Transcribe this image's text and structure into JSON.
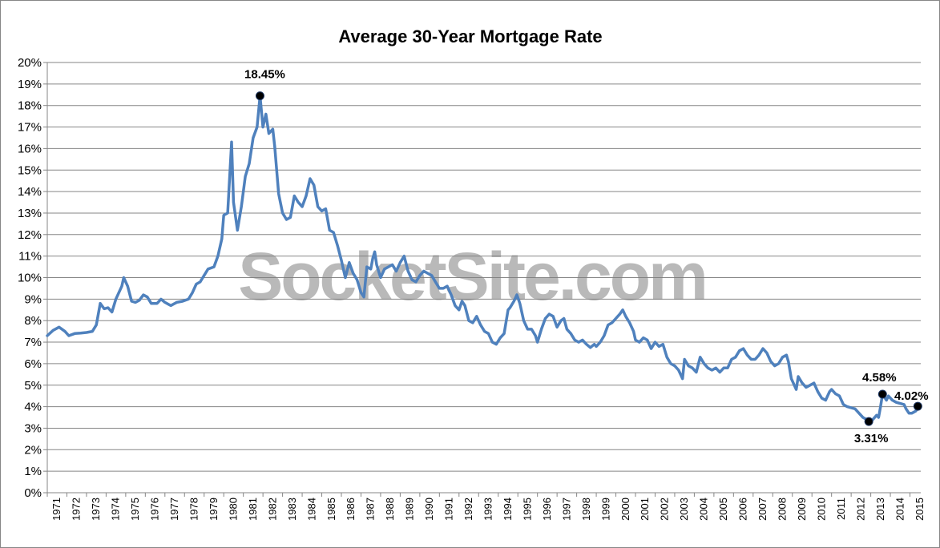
{
  "chart_data": {
    "type": "line",
    "title": "Average 30-Year Mortgage Rate",
    "watermark": "SocketSite.com",
    "xlabel": "",
    "ylabel": "",
    "ylim": [
      0,
      20
    ],
    "y_tick_labels": [
      "0%",
      "1%",
      "2%",
      "3%",
      "4%",
      "5%",
      "6%",
      "7%",
      "8%",
      "9%",
      "10%",
      "11%",
      "12%",
      "13%",
      "14%",
      "15%",
      "16%",
      "17%",
      "18%",
      "19%",
      "20%"
    ],
    "x_tick_labels": [
      "1971",
      "1972",
      "1973",
      "1974",
      "1975",
      "1976",
      "1977",
      "1978",
      "1979",
      "1980",
      "1981",
      "1982",
      "1983",
      "1984",
      "1985",
      "1986",
      "1987",
      "1988",
      "1989",
      "1990",
      "1991",
      "1992",
      "1993",
      "1994",
      "1995",
      "1996",
      "1997",
      "1998",
      "1999",
      "2000",
      "2001",
      "2002",
      "2003",
      "2004",
      "2005",
      "2006",
      "2007",
      "2008",
      "2009",
      "2010",
      "2011",
      "2012",
      "2013",
      "2014",
      "2015"
    ],
    "grid": true,
    "legend": "none",
    "line_color": "#4f81bd",
    "series": [
      {
        "values": [
          [
            1971.0,
            7.3
          ],
          [
            1971.3,
            7.55
          ],
          [
            1971.6,
            7.7
          ],
          [
            1971.9,
            7.5
          ],
          [
            1972.1,
            7.3
          ],
          [
            1972.4,
            7.4
          ],
          [
            1972.7,
            7.42
          ],
          [
            1973.0,
            7.45
          ],
          [
            1973.3,
            7.5
          ],
          [
            1973.5,
            7.8
          ],
          [
            1973.7,
            8.8
          ],
          [
            1973.9,
            8.55
          ],
          [
            1974.1,
            8.6
          ],
          [
            1974.3,
            8.4
          ],
          [
            1974.5,
            9.0
          ],
          [
            1974.8,
            9.6
          ],
          [
            1974.9,
            10.0
          ],
          [
            1975.1,
            9.6
          ],
          [
            1975.3,
            8.9
          ],
          [
            1975.5,
            8.85
          ],
          [
            1975.7,
            8.95
          ],
          [
            1975.9,
            9.2
          ],
          [
            1976.1,
            9.1
          ],
          [
            1976.3,
            8.8
          ],
          [
            1976.6,
            8.8
          ],
          [
            1976.8,
            9.0
          ],
          [
            1977.0,
            8.85
          ],
          [
            1977.3,
            8.7
          ],
          [
            1977.6,
            8.85
          ],
          [
            1977.9,
            8.9
          ],
          [
            1978.2,
            9.0
          ],
          [
            1978.4,
            9.3
          ],
          [
            1978.6,
            9.7
          ],
          [
            1978.8,
            9.8
          ],
          [
            1979.0,
            10.1
          ],
          [
            1979.2,
            10.4
          ],
          [
            1979.5,
            10.5
          ],
          [
            1979.7,
            11.0
          ],
          [
            1979.9,
            11.8
          ],
          [
            1980.0,
            12.9
          ],
          [
            1980.2,
            13.0
          ],
          [
            1980.4,
            16.3
          ],
          [
            1980.5,
            13.5
          ],
          [
            1980.7,
            12.2
          ],
          [
            1980.9,
            13.3
          ],
          [
            1981.1,
            14.7
          ],
          [
            1981.3,
            15.3
          ],
          [
            1981.5,
            16.5
          ],
          [
            1981.7,
            17.0
          ],
          [
            1981.85,
            18.45
          ],
          [
            1982.0,
            17.0
          ],
          [
            1982.15,
            17.6
          ],
          [
            1982.3,
            16.7
          ],
          [
            1982.5,
            16.9
          ],
          [
            1982.6,
            16.1
          ],
          [
            1982.8,
            13.9
          ],
          [
            1983.0,
            13.0
          ],
          [
            1983.2,
            12.7
          ],
          [
            1983.4,
            12.8
          ],
          [
            1983.6,
            13.8
          ],
          [
            1983.8,
            13.5
          ],
          [
            1984.0,
            13.3
          ],
          [
            1984.2,
            13.8
          ],
          [
            1984.4,
            14.6
          ],
          [
            1984.6,
            14.3
          ],
          [
            1984.8,
            13.3
          ],
          [
            1985.0,
            13.1
          ],
          [
            1985.2,
            13.2
          ],
          [
            1985.4,
            12.2
          ],
          [
            1985.6,
            12.1
          ],
          [
            1985.8,
            11.5
          ],
          [
            1986.0,
            10.8
          ],
          [
            1986.2,
            10.0
          ],
          [
            1986.4,
            10.7
          ],
          [
            1986.6,
            10.2
          ],
          [
            1986.8,
            9.9
          ],
          [
            1987.0,
            9.3
          ],
          [
            1987.15,
            9.1
          ],
          [
            1987.3,
            10.5
          ],
          [
            1987.5,
            10.4
          ],
          [
            1987.6,
            10.9
          ],
          [
            1987.7,
            11.2
          ],
          [
            1987.8,
            10.6
          ],
          [
            1988.0,
            10.0
          ],
          [
            1988.2,
            10.4
          ],
          [
            1988.4,
            10.5
          ],
          [
            1988.6,
            10.6
          ],
          [
            1988.8,
            10.3
          ],
          [
            1989.0,
            10.7
          ],
          [
            1989.2,
            11.0
          ],
          [
            1989.4,
            10.3
          ],
          [
            1989.6,
            9.9
          ],
          [
            1989.8,
            9.8
          ],
          [
            1990.0,
            10.1
          ],
          [
            1990.2,
            10.3
          ],
          [
            1990.4,
            10.2
          ],
          [
            1990.6,
            10.1
          ],
          [
            1990.8,
            9.8
          ],
          [
            1991.0,
            9.5
          ],
          [
            1991.2,
            9.5
          ],
          [
            1991.4,
            9.6
          ],
          [
            1991.6,
            9.2
          ],
          [
            1991.8,
            8.7
          ],
          [
            1992.0,
            8.5
          ],
          [
            1992.15,
            8.9
          ],
          [
            1992.3,
            8.7
          ],
          [
            1992.5,
            8.0
          ],
          [
            1992.7,
            7.9
          ],
          [
            1992.9,
            8.2
          ],
          [
            1993.1,
            7.8
          ],
          [
            1993.3,
            7.5
          ],
          [
            1993.5,
            7.4
          ],
          [
            1993.7,
            7.0
          ],
          [
            1993.9,
            6.9
          ],
          [
            1994.1,
            7.2
          ],
          [
            1994.3,
            7.4
          ],
          [
            1994.5,
            8.5
          ],
          [
            1994.6,
            8.6
          ],
          [
            1994.8,
            8.9
          ],
          [
            1994.95,
            9.2
          ],
          [
            1995.1,
            8.8
          ],
          [
            1995.3,
            8.0
          ],
          [
            1995.5,
            7.6
          ],
          [
            1995.7,
            7.6
          ],
          [
            1995.9,
            7.3
          ],
          [
            1996.0,
            7.0
          ],
          [
            1996.2,
            7.6
          ],
          [
            1996.4,
            8.1
          ],
          [
            1996.6,
            8.3
          ],
          [
            1996.8,
            8.2
          ],
          [
            1997.0,
            7.7
          ],
          [
            1997.2,
            8.0
          ],
          [
            1997.35,
            8.1
          ],
          [
            1997.5,
            7.6
          ],
          [
            1997.7,
            7.4
          ],
          [
            1997.9,
            7.1
          ],
          [
            1998.1,
            7.0
          ],
          [
            1998.3,
            7.1
          ],
          [
            1998.5,
            6.9
          ],
          [
            1998.7,
            6.75
          ],
          [
            1998.9,
            6.9
          ],
          [
            1999.0,
            6.8
          ],
          [
            1999.2,
            7.0
          ],
          [
            1999.4,
            7.3
          ],
          [
            1999.6,
            7.8
          ],
          [
            1999.8,
            7.9
          ],
          [
            2000.0,
            8.1
          ],
          [
            2000.2,
            8.3
          ],
          [
            2000.35,
            8.5
          ],
          [
            2000.5,
            8.2
          ],
          [
            2000.7,
            7.9
          ],
          [
            2000.9,
            7.5
          ],
          [
            2001.0,
            7.1
          ],
          [
            2001.2,
            7.0
          ],
          [
            2001.4,
            7.2
          ],
          [
            2001.6,
            7.1
          ],
          [
            2001.8,
            6.7
          ],
          [
            2002.0,
            7.0
          ],
          [
            2002.2,
            6.8
          ],
          [
            2002.4,
            6.9
          ],
          [
            2002.6,
            6.3
          ],
          [
            2002.8,
            6.0
          ],
          [
            2003.0,
            5.9
          ],
          [
            2003.2,
            5.7
          ],
          [
            2003.4,
            5.3
          ],
          [
            2003.5,
            6.2
          ],
          [
            2003.7,
            5.9
          ],
          [
            2003.9,
            5.8
          ],
          [
            2004.1,
            5.6
          ],
          [
            2004.3,
            6.3
          ],
          [
            2004.5,
            6.0
          ],
          [
            2004.7,
            5.8
          ],
          [
            2004.9,
            5.7
          ],
          [
            2005.1,
            5.8
          ],
          [
            2005.3,
            5.6
          ],
          [
            2005.5,
            5.8
          ],
          [
            2005.7,
            5.8
          ],
          [
            2005.9,
            6.2
          ],
          [
            2006.1,
            6.3
          ],
          [
            2006.3,
            6.6
          ],
          [
            2006.5,
            6.7
          ],
          [
            2006.7,
            6.4
          ],
          [
            2006.9,
            6.2
          ],
          [
            2007.1,
            6.2
          ],
          [
            2007.3,
            6.4
          ],
          [
            2007.5,
            6.7
          ],
          [
            2007.7,
            6.5
          ],
          [
            2007.9,
            6.1
          ],
          [
            2008.1,
            5.9
          ],
          [
            2008.3,
            6.0
          ],
          [
            2008.5,
            6.3
          ],
          [
            2008.7,
            6.4
          ],
          [
            2008.8,
            6.1
          ],
          [
            2008.95,
            5.3
          ],
          [
            2009.1,
            5.0
          ],
          [
            2009.2,
            4.8
          ],
          [
            2009.3,
            5.4
          ],
          [
            2009.5,
            5.1
          ],
          [
            2009.7,
            4.9
          ],
          [
            2009.9,
            5.0
          ],
          [
            2010.1,
            5.1
          ],
          [
            2010.3,
            4.7
          ],
          [
            2010.5,
            4.4
          ],
          [
            2010.7,
            4.3
          ],
          [
            2010.9,
            4.7
          ],
          [
            2011.0,
            4.8
          ],
          [
            2011.2,
            4.6
          ],
          [
            2011.4,
            4.5
          ],
          [
            2011.6,
            4.1
          ],
          [
            2011.8,
            4.0
          ],
          [
            2012.0,
            3.95
          ],
          [
            2012.2,
            3.9
          ],
          [
            2012.4,
            3.7
          ],
          [
            2012.6,
            3.5
          ],
          [
            2012.8,
            3.4
          ],
          [
            2012.9,
            3.31
          ],
          [
            2013.1,
            3.4
          ],
          [
            2013.3,
            3.6
          ],
          [
            2013.4,
            3.5
          ],
          [
            2013.5,
            4.0
          ],
          [
            2013.6,
            4.58
          ],
          [
            2013.8,
            4.3
          ],
          [
            2013.9,
            4.5
          ],
          [
            2014.1,
            4.3
          ],
          [
            2014.3,
            4.2
          ],
          [
            2014.5,
            4.15
          ],
          [
            2014.7,
            4.1
          ],
          [
            2014.8,
            3.9
          ],
          [
            2014.95,
            3.7
          ],
          [
            2015.1,
            3.7
          ],
          [
            2015.3,
            3.8
          ],
          [
            2015.4,
            4.02
          ]
        ]
      }
    ],
    "annotations": [
      {
        "text": "18.45%",
        "x": 1981.85,
        "y": 18.45,
        "anchor": "above"
      },
      {
        "text": "4.58%",
        "x": 2013.6,
        "y": 4.58,
        "anchor": "above"
      },
      {
        "text": "3.31%",
        "x": 2012.9,
        "y": 3.31,
        "anchor": "below"
      },
      {
        "text": "4.02%",
        "x": 2015.4,
        "y": 4.02,
        "anchor": "above"
      }
    ]
  }
}
